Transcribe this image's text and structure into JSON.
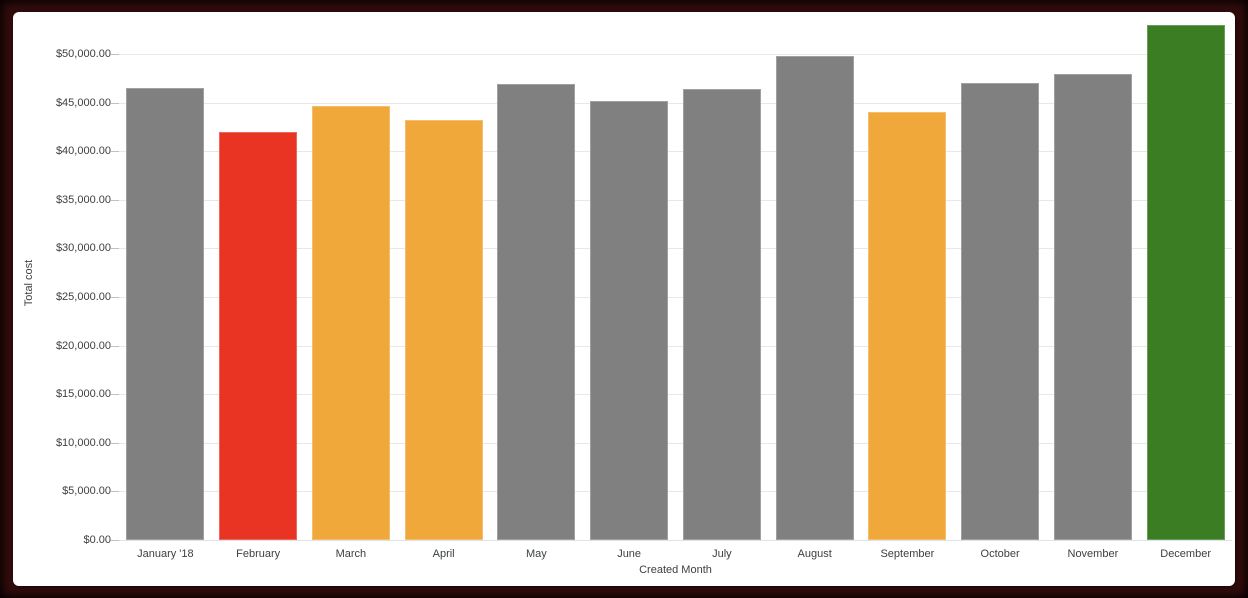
{
  "frame": {
    "border_color": "#330c0c",
    "background_color": "#ffffff"
  },
  "chart_data": {
    "type": "bar",
    "title": "",
    "xlabel": "Created Month",
    "ylabel": "Total cost",
    "categories": [
      "January '18",
      "February",
      "March",
      "April",
      "May",
      "June",
      "July",
      "August",
      "September",
      "October",
      "November",
      "December"
    ],
    "values": [
      46500,
      42000,
      44700,
      43200,
      46900,
      45200,
      46400,
      49800,
      44000,
      47000,
      48000,
      53000
    ],
    "bar_colors": [
      "#808080",
      "#EA3423",
      "#F0A83B",
      "#F0A83B",
      "#808080",
      "#808080",
      "#808080",
      "#808080",
      "#F0A83B",
      "#808080",
      "#808080",
      "#3A7D22"
    ],
    "color_legend": {
      "default": "#808080",
      "low_alert": "#EA3423",
      "warning": "#F0A83B",
      "high": "#3A7D22"
    },
    "ylim": [
      0,
      53000
    ],
    "grid": true,
    "legend_position": "none",
    "y_ticks": [
      {
        "value": 0,
        "label": "$0.00"
      },
      {
        "value": 5000,
        "label": "$5,000.00"
      },
      {
        "value": 10000,
        "label": "$10,000.00"
      },
      {
        "value": 15000,
        "label": "$15,000.00"
      },
      {
        "value": 20000,
        "label": "$20,000.00"
      },
      {
        "value": 25000,
        "label": "$25,000.00"
      },
      {
        "value": 30000,
        "label": "$30,000.00"
      },
      {
        "value": 35000,
        "label": "$35,000.00"
      },
      {
        "value": 40000,
        "label": "$40,000.00"
      },
      {
        "value": 45000,
        "label": "$45,000.00"
      },
      {
        "value": 50000,
        "label": "$50,000.00"
      }
    ],
    "grid_color": "#e8e8e8",
    "axis_line_color": "#dde3e8",
    "tick_text_color": "#3c4043"
  }
}
